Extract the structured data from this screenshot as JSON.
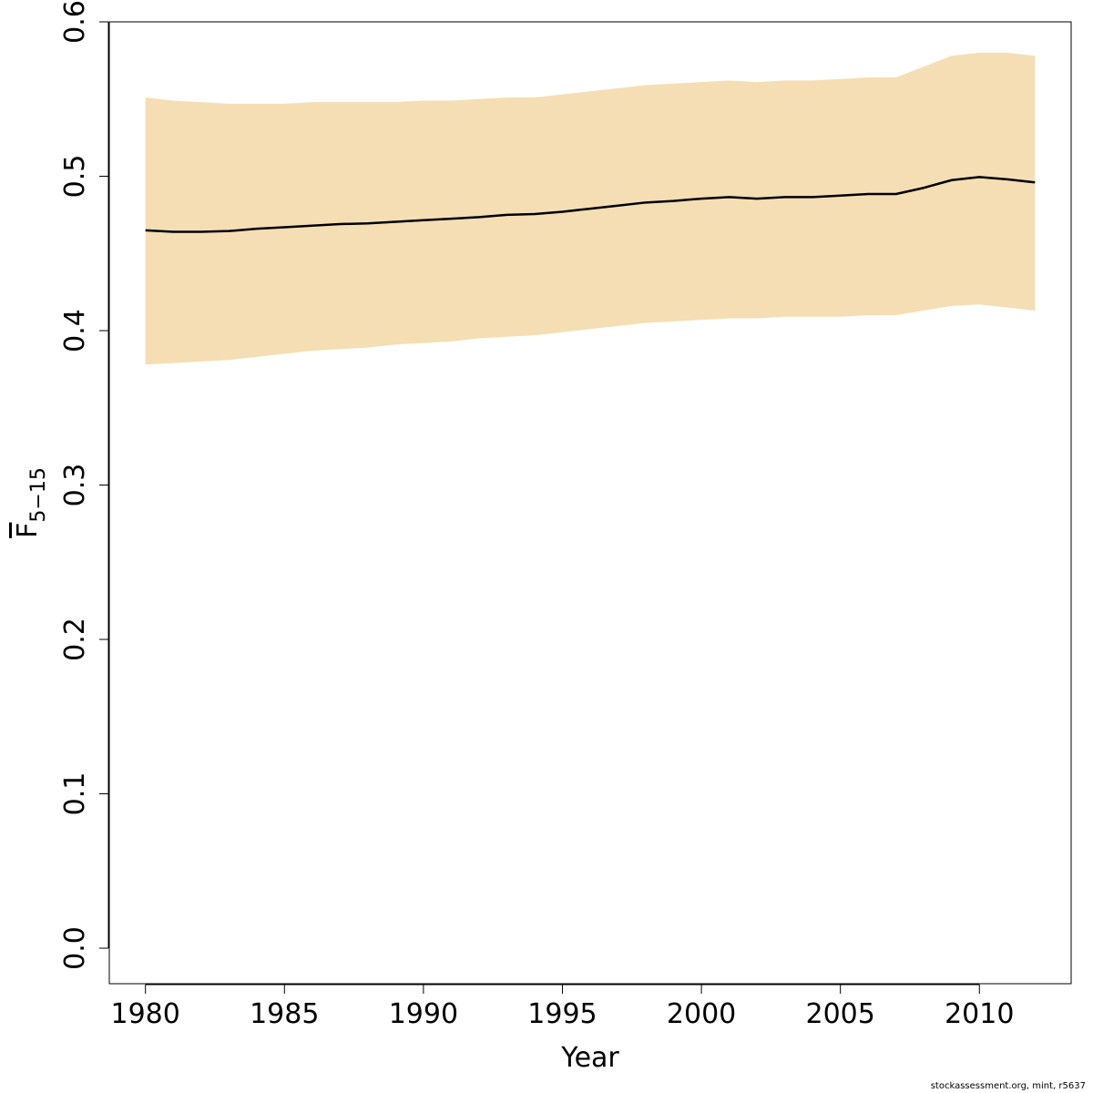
{
  "chart_data": {
    "type": "line",
    "xlabel": "Year",
    "ylabel_main": "F",
    "ylabel_sub": "5−15",
    "xlim": [
      1978.7,
      2013.3
    ],
    "ylim": [
      -0.023,
      0.6
    ],
    "x_ticks": [
      1980,
      1985,
      1990,
      1995,
      2000,
      2005,
      2010
    ],
    "x_tick_labels": [
      "1980",
      "1985",
      "1990",
      "1995",
      "2000",
      "2005",
      "2010"
    ],
    "y_ticks": [
      0.0,
      0.1,
      0.2,
      0.3,
      0.4,
      0.5,
      0.6
    ],
    "y_tick_labels": [
      "0.0",
      "0.1",
      "0.2",
      "0.3",
      "0.4",
      "0.5",
      "0.6"
    ],
    "grid": false,
    "colors": {
      "band": "#F5DEB3",
      "line": "#000000"
    },
    "x": [
      1980,
      1981,
      1982,
      1983,
      1984,
      1985,
      1986,
      1987,
      1988,
      1989,
      1990,
      1991,
      1992,
      1993,
      1994,
      1995,
      1996,
      1997,
      1998,
      1999,
      2000,
      2001,
      2002,
      2003,
      2004,
      2005,
      2006,
      2007,
      2008,
      2009,
      2010,
      2011,
      2012
    ],
    "series": [
      {
        "values": [
          0.465,
          0.464,
          0.464,
          0.4645,
          0.466,
          0.467,
          0.468,
          0.469,
          0.4695,
          0.4705,
          0.4715,
          0.4725,
          0.4735,
          0.475,
          0.4755,
          0.477,
          0.479,
          0.481,
          0.483,
          0.484,
          0.4855,
          0.4865,
          0.4855,
          0.4865,
          0.4865,
          0.4875,
          0.4885,
          0.4885,
          0.4925,
          0.4975,
          0.4995,
          0.498,
          0.496
        ]
      }
    ],
    "bands": [
      {
        "lower": [
          0.378,
          0.379,
          0.38,
          0.381,
          0.383,
          0.385,
          0.387,
          0.388,
          0.389,
          0.391,
          0.392,
          0.393,
          0.395,
          0.396,
          0.397,
          0.399,
          0.401,
          0.403,
          0.405,
          0.406,
          0.407,
          0.408,
          0.408,
          0.409,
          0.409,
          0.409,
          0.41,
          0.41,
          0.413,
          0.416,
          0.417,
          0.415,
          0.413
        ],
        "upper": [
          0.551,
          0.549,
          0.548,
          0.547,
          0.547,
          0.547,
          0.548,
          0.548,
          0.548,
          0.548,
          0.549,
          0.549,
          0.55,
          0.551,
          0.551,
          0.553,
          0.555,
          0.557,
          0.559,
          0.56,
          0.561,
          0.562,
          0.561,
          0.562,
          0.562,
          0.563,
          0.564,
          0.564,
          0.571,
          0.578,
          0.58,
          0.58,
          0.578
        ]
      }
    ]
  },
  "footer": "stockassessment.org, mint, r5637"
}
